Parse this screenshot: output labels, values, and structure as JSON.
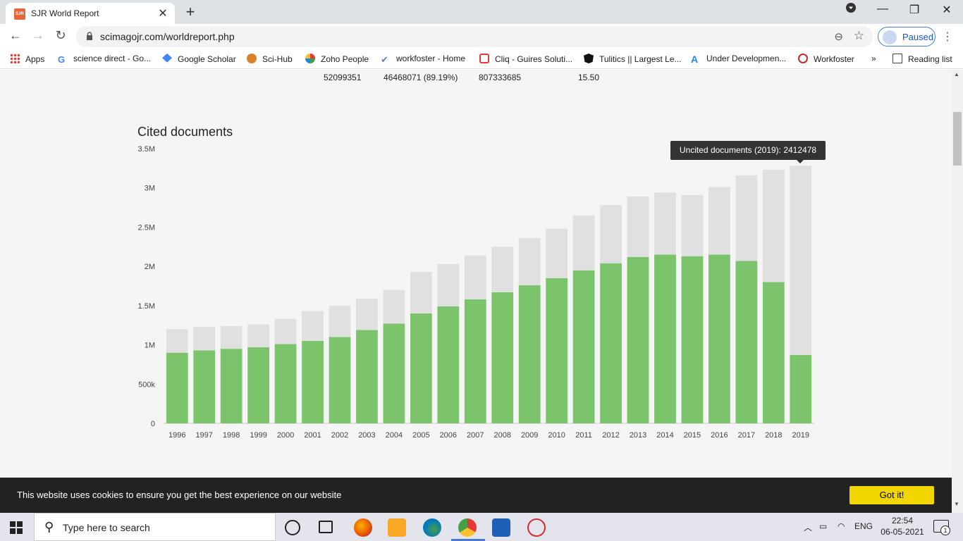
{
  "browser": {
    "tab_title": "SJR World Report",
    "tab_favicon_text": "SJR",
    "url": "scimagojr.com/worldreport.php",
    "profile_status": "Paused",
    "reading_list": "Reading list",
    "bookmarks": [
      {
        "label": "Apps",
        "icon": "apps-grid-icon"
      },
      {
        "label": "science direct - Go...",
        "icon": "google-icon"
      },
      {
        "label": "Google Scholar",
        "icon": "scholar-icon"
      },
      {
        "label": "Sci-Hub",
        "icon": "scihub-icon"
      },
      {
        "label": "Zoho People",
        "icon": "zoho-icon"
      },
      {
        "label": "workfoster - Home",
        "icon": "check-icon"
      },
      {
        "label": "Cliq - Guires Soluti...",
        "icon": "cliq-icon"
      },
      {
        "label": "Tulitics || Largest Le...",
        "icon": "angular-icon"
      },
      {
        "label": "Under Developmen...",
        "icon": "a-icon"
      },
      {
        "label": "Workfoster",
        "icon": "workfoster-icon"
      }
    ],
    "bookmarks_overflow": "»"
  },
  "stats_row": {
    "documents": "52099351",
    "citable": "46468071 (89.19%)",
    "citations": "807333685",
    "ratio": "15.50"
  },
  "chart_title": "Cited documents",
  "tooltip": "Uncited documents (2019): 2412478",
  "chart_data": {
    "type": "bar",
    "stacked": true,
    "title": "Cited documents",
    "categories": [
      "1996",
      "1997",
      "1998",
      "1999",
      "2000",
      "2001",
      "2002",
      "2003",
      "2004",
      "2005",
      "2006",
      "2007",
      "2008",
      "2009",
      "2010",
      "2011",
      "2012",
      "2013",
      "2014",
      "2015",
      "2016",
      "2017",
      "2018",
      "2019"
    ],
    "series": [
      {
        "name": "Cited documents",
        "color": "#7bc46b",
        "values": [
          900000,
          930000,
          950000,
          970000,
          1010000,
          1050000,
          1100000,
          1190000,
          1270000,
          1400000,
          1490000,
          1580000,
          1670000,
          1760000,
          1850000,
          1950000,
          2040000,
          2120000,
          2150000,
          2130000,
          2150000,
          2070000,
          1800000,
          870000
        ]
      },
      {
        "name": "Uncited documents",
        "color": "#e0e0e0",
        "values": [
          300000,
          300000,
          290000,
          290000,
          320000,
          380000,
          400000,
          400000,
          430000,
          530000,
          540000,
          560000,
          580000,
          600000,
          630000,
          700000,
          740000,
          770000,
          790000,
          780000,
          860000,
          1090000,
          1430000,
          2412478
        ]
      }
    ],
    "ylim": [
      0,
      3500000
    ],
    "yticks": [
      {
        "value": 0,
        "label": "0"
      },
      {
        "value": 500000,
        "label": "500k"
      },
      {
        "value": 1000000,
        "label": "1M"
      },
      {
        "value": 1500000,
        "label": "1.5M"
      },
      {
        "value": 2000000,
        "label": "2M"
      },
      {
        "value": 2500000,
        "label": "2.5M"
      },
      {
        "value": 3000000,
        "label": "3M"
      },
      {
        "value": 3500000,
        "label": "3.5M"
      }
    ],
    "grid": false
  },
  "cookie": {
    "message": "This website uses cookies to ensure you get the best experience on our website",
    "button": "Got it!"
  },
  "taskbar": {
    "search_placeholder": "Type here to search",
    "language": "ENG",
    "time": "22:54",
    "date": "06-05-2021",
    "notification_count": "1"
  }
}
